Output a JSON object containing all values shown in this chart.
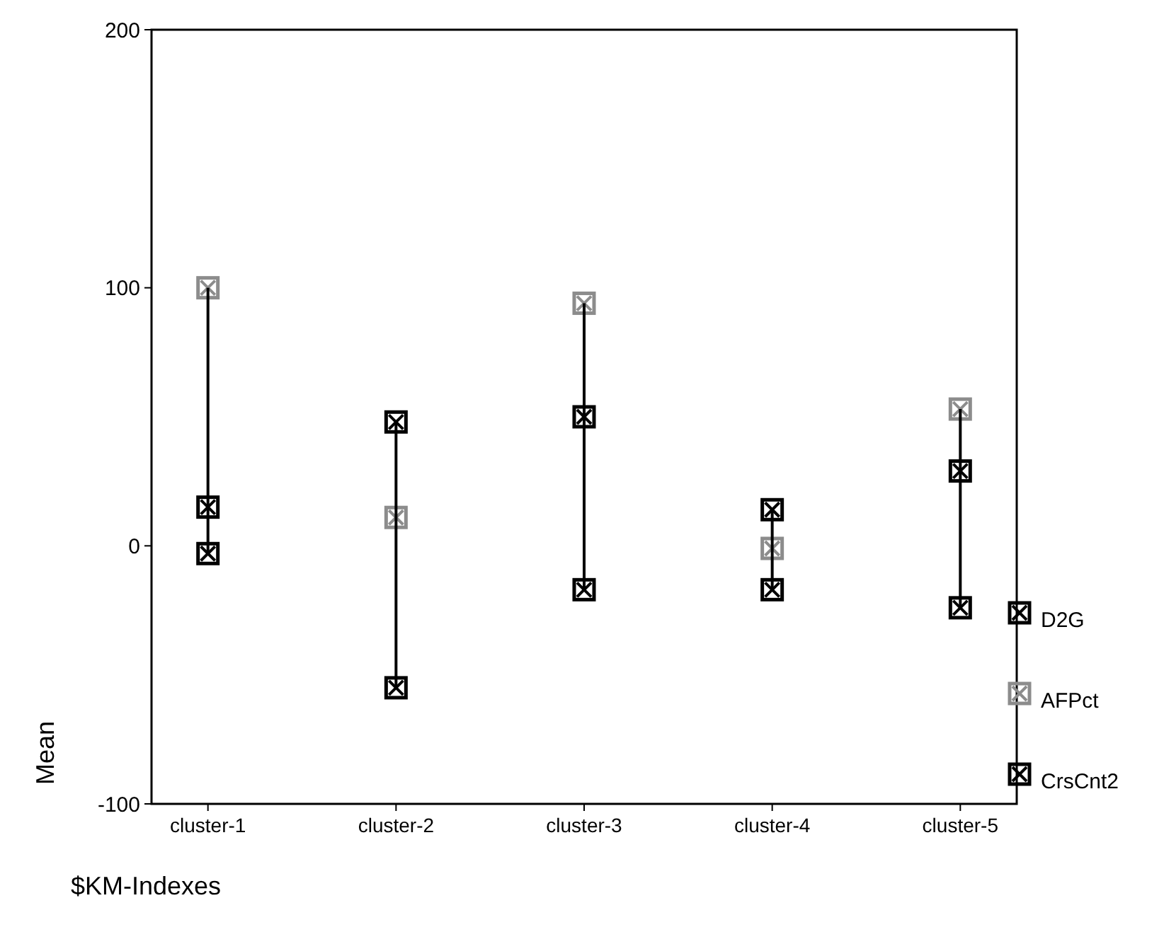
{
  "chart_data": {
    "type": "scatter",
    "xlabel": "$KM-Indexes",
    "ylabel": "Mean",
    "categories": [
      "cluster-1",
      "cluster-2",
      "cluster-3",
      "cluster-4",
      "cluster-5"
    ],
    "ylim": [
      -100,
      200
    ],
    "yticks": [
      -100,
      0,
      100,
      200
    ],
    "grid": false,
    "legend": "right",
    "marker": "square",
    "series": [
      {
        "type": "bar",
        "color": "#000000",
        "base": [
          -3,
          -55,
          -17,
          -17,
          -24
        ],
        "values": [
          103,
          103,
          111,
          31,
          77
        ]
      },
      {
        "name": "D2G",
        "color": "#000000",
        "values": [
          15,
          48,
          50,
          14,
          29
        ]
      },
      {
        "name": "AFPct",
        "color": "#8c8c8c",
        "values": [
          100,
          11,
          94,
          -1,
          53
        ]
      },
      {
        "name": "CrsCnt2",
        "color": "#000000",
        "values": [
          -3,
          -55,
          -17,
          -17,
          -24
        ]
      }
    ]
  }
}
